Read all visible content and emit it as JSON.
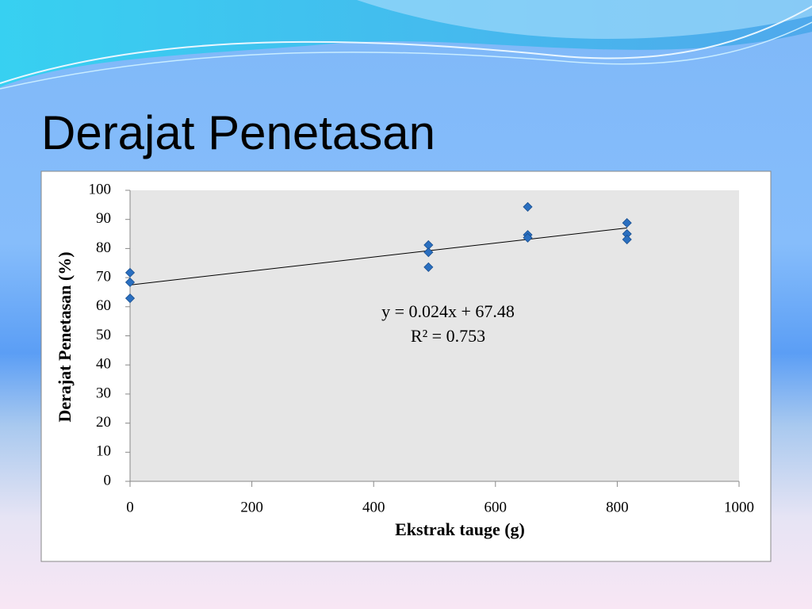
{
  "chart_data": {
    "type": "scatter",
    "title": "Derajat Penetasan",
    "x_label": "Ekstrak tauge (g)",
    "y_label": "Derajat Penetasan (%)",
    "x": [
      0,
      0,
      0,
      490,
      490,
      490,
      653,
      653,
      653,
      816,
      816,
      816
    ],
    "values": [
      71.7,
      68.4,
      62.9,
      81.2,
      78.7,
      73.6,
      94.3,
      84.7,
      83.7,
      88.8,
      85.0,
      83.1
    ],
    "color": "#2a6fc0",
    "xlim": [
      0,
      1000
    ],
    "xticks": [
      0,
      200,
      400,
      600,
      800,
      1000
    ],
    "ylim": [
      0,
      100
    ],
    "yticks": [
      0,
      10,
      20,
      30,
      40,
      50,
      60,
      70,
      80,
      90,
      100
    ],
    "trendline": {
      "slope": 0.024,
      "intercept": 67.48
    },
    "annotations": [
      "y = 0.024x + 67.48",
      "R² = 0.753"
    ]
  }
}
